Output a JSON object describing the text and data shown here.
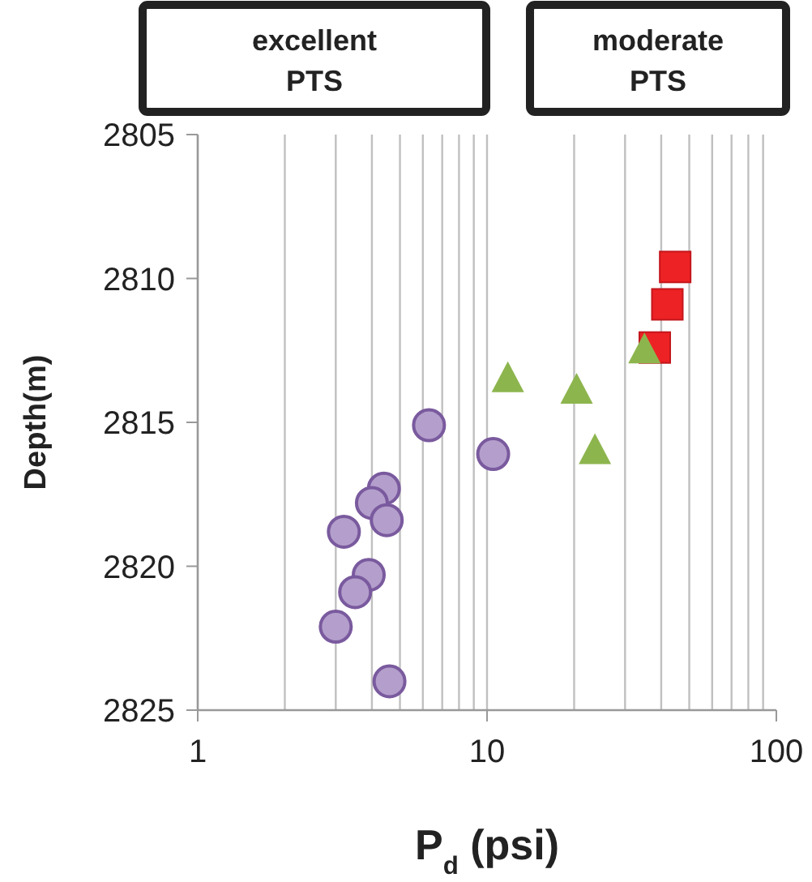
{
  "chart_data": {
    "type": "scatter",
    "xlabel": "P$_{d}$ (psi)",
    "ylabel": "Depth(m)",
    "log": "x",
    "xlim": [
      1,
      100
    ],
    "xticks": [
      1,
      10,
      100
    ],
    "ylim": [
      2825,
      2805
    ],
    "yticks": [
      2805,
      2810,
      2815,
      2820,
      2825
    ],
    "grid": "x",
    "annotations": [
      "excellent\nPTS",
      "moderate\nPTS"
    ],
    "series": [
      {
        "color": "#b49fcc",
        "marker": "circle",
        "x": [
          6.3,
          10.5,
          4.4,
          4.0,
          4.5,
          3.2,
          3.9,
          3.5,
          3.0,
          4.6
        ],
        "values": [
          2815.1,
          2816.1,
          2817.3,
          2817.8,
          2818.4,
          2818.8,
          2820.3,
          2820.9,
          2822.1,
          2824.0
        ]
      },
      {
        "color": "#ed2224",
        "marker": "square",
        "x": [
          44.7,
          42,
          38
        ],
        "values": [
          2809.6,
          2810.9,
          2812.4
        ]
      },
      {
        "color": "#8db54e",
        "marker": "triangle",
        "x": [
          11.8,
          20.4,
          23.6,
          35.0
        ],
        "values": [
          2813.5,
          2813.9,
          2816.0,
          2812.5
        ]
      }
    ]
  }
}
